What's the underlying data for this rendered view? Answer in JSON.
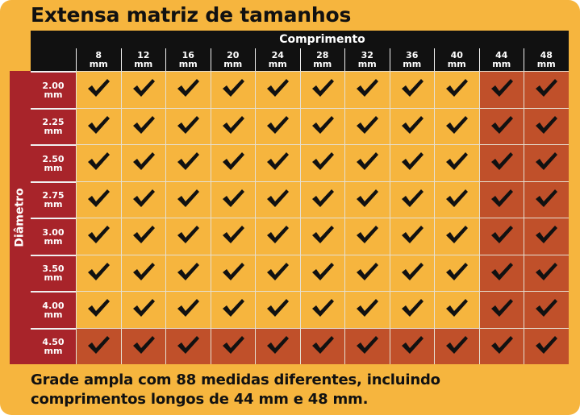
{
  "title": "Extensa matriz de tamanhos",
  "header": {
    "length_title": "Comprimento",
    "diameter_title": "Diâmetro"
  },
  "lengths": [
    {
      "value": "8",
      "unit": "mm"
    },
    {
      "value": "12",
      "unit": "mm"
    },
    {
      "value": "16",
      "unit": "mm"
    },
    {
      "value": "20",
      "unit": "mm"
    },
    {
      "value": "24",
      "unit": "mm"
    },
    {
      "value": "28",
      "unit": "mm"
    },
    {
      "value": "32",
      "unit": "mm"
    },
    {
      "value": "36",
      "unit": "mm"
    },
    {
      "value": "40",
      "unit": "mm"
    },
    {
      "value": "44",
      "unit": "mm"
    },
    {
      "value": "48",
      "unit": "mm"
    }
  ],
  "diameters": [
    {
      "value": "2.00",
      "unit": "mm"
    },
    {
      "value": "2.25",
      "unit": "mm"
    },
    {
      "value": "2.50",
      "unit": "mm"
    },
    {
      "value": "2.75",
      "unit": "mm"
    },
    {
      "value": "3.00",
      "unit": "mm"
    },
    {
      "value": "3.50",
      "unit": "mm"
    },
    {
      "value": "4.00",
      "unit": "mm"
    },
    {
      "value": "4.50",
      "unit": "mm"
    }
  ],
  "cell_icon": "checkmark-icon",
  "long_lengths": [
    "44",
    "48"
  ],
  "highlight_diameter": "4.50",
  "colors": {
    "background": "#f6b53e",
    "header_bg": "#111111",
    "diameter_bg": "#a8242a",
    "highlight_cell": "#c0502a",
    "check": "#111111"
  },
  "footer": {
    "line1": "Grade ampla com 88 medidas diferentes, incluindo",
    "line2": "comprimentos longos de 44 mm e 48 mm."
  }
}
